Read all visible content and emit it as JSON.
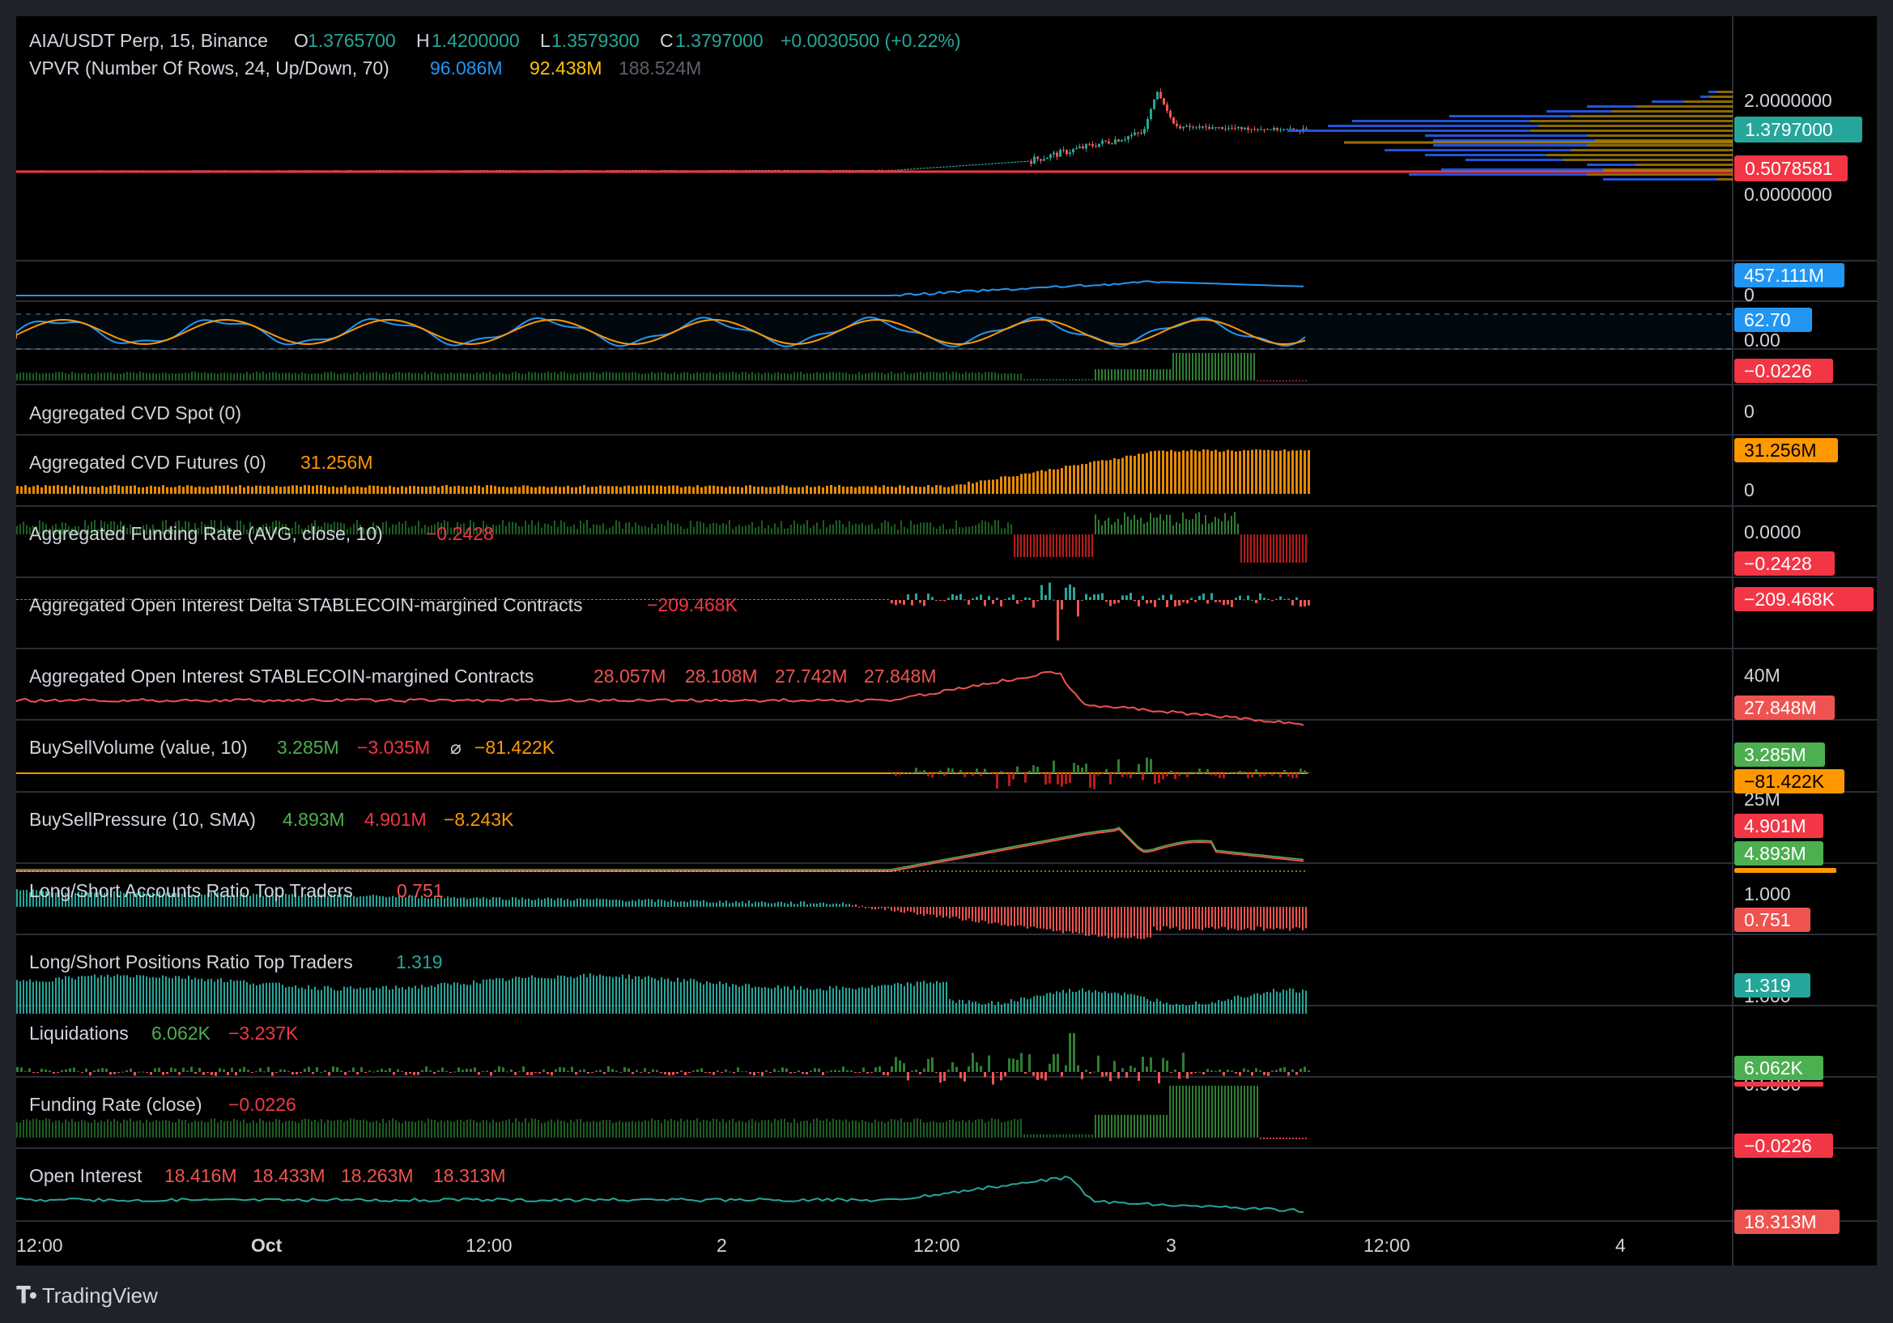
{
  "header": {
    "symbol": "AIA/USDT Perp, 15, Binance",
    "open_label": "O",
    "open": "1.3765700",
    "high_label": "H",
    "high": "1.4200000",
    "low_label": "L",
    "low": "1.3579300",
    "close_label": "C",
    "close": "1.3797000",
    "change": "+0.0030500 (+0.22%)"
  },
  "vpvr": {
    "title": "VPVR (Number Of Rows, 24, Up/Down, 70)",
    "up": "96.086M",
    "down": "92.438M",
    "total": "188.524M"
  },
  "colors": {
    "up": "#26a69a",
    "down": "#ef5350",
    "green": "#4caf50",
    "red": "#f23645",
    "orange": "#ff9800",
    "blue": "#2196f3",
    "text": "#d1d4dc",
    "grid": "#2a2e39",
    "frame": "#000000",
    "outer": "#1f2229"
  },
  "price_axis": {
    "ticks": [
      "2.0000000",
      "0.0000000"
    ],
    "last_price_tag": "1.3797000",
    "line_tag": "0.5078581"
  },
  "panes": {
    "p1": {
      "tags": [
        "457.111M"
      ],
      "ticks": [
        "0"
      ]
    },
    "p2": {
      "tags": [
        "62.70"
      ],
      "ticks": [
        "0.00"
      ]
    },
    "p3": {
      "tags": [
        "−0.0226"
      ]
    },
    "cvd_spot": {
      "title": "Aggregated CVD Spot (0)",
      "ticks": [
        "0"
      ]
    },
    "cvd_fut": {
      "title": "Aggregated CVD Futures (0)",
      "v1": "31.256M",
      "tags": [
        "31.256M"
      ],
      "ticks": [
        "0"
      ]
    },
    "agg_funding": {
      "title": "Aggregated Funding Rate (AVG, close, 10)",
      "v1": "−0.2428",
      "tags": [
        "−0.2428"
      ],
      "ticks": [
        "0.0000"
      ]
    },
    "oi_delta": {
      "title": "Aggregated Open Interest Delta STABLECOIN-margined Contracts",
      "v1": "−209.468K",
      "tags": [
        "−209.468K"
      ]
    },
    "agg_oi": {
      "title": "Aggregated Open Interest STABLECOIN-margined Contracts",
      "v1": "28.057M",
      "v2": "28.108M",
      "v3": "27.742M",
      "v4": "27.848M",
      "tags": [
        "27.848M"
      ],
      "ticks": [
        "40M"
      ]
    },
    "bsv": {
      "title": "BuySellVolume (value, 10)",
      "v1": "3.285M",
      "v2": "−3.035M",
      "sym": "⌀",
      "v3": "−81.422K",
      "tags": [
        "3.285M",
        "−81.422K"
      ]
    },
    "bsp": {
      "title": "BuySellPressure (10, SMA)",
      "v1": "4.893M",
      "v2": "4.901M",
      "v3": "−8.243K",
      "tags": [
        "4.901M",
        "4.893M"
      ],
      "ticks": [
        "25M"
      ]
    },
    "ls_acc": {
      "title": "Long/Short Accounts Ratio Top Traders",
      "v1": "0.751",
      "tags": [
        "0.751"
      ],
      "ticks": [
        "1.000"
      ]
    },
    "ls_pos": {
      "title": "Long/Short Positions Ratio Top Traders",
      "v1": "1.319",
      "tags": [
        "1.319"
      ],
      "ticks": [
        "1.000"
      ]
    },
    "liq": {
      "title": "Liquidations",
      "v1": "6.062K",
      "v2": "−3.237K",
      "tags": [
        "6.062K"
      ]
    },
    "funding": {
      "title": "Funding Rate (close)",
      "v1": "−0.0226",
      "tags": [
        "−0.0226"
      ],
      "ticks": [
        "0.5000"
      ]
    },
    "oi": {
      "title": "Open Interest",
      "v1": "18.416M",
      "v2": "18.433M",
      "v3": "18.263M",
      "v4": "18.313M",
      "tags": [
        "18.313M"
      ]
    }
  },
  "time_axis": [
    "12:00",
    "Oct",
    "12:00",
    "2",
    "12:00",
    "3",
    "12:00",
    "4"
  ],
  "brand": "TradingView",
  "chart_data": {
    "type": "line",
    "title": "AIA/USDT Perp, 15, Binance",
    "x": [
      "Sep 30 12:00",
      "Oct 1 00:00",
      "Oct 1 12:00",
      "Oct 2 00:00",
      "Oct 2 12:00",
      "Oct 3 00:00",
      "Oct 3 12:00",
      "Oct 4 00:00"
    ],
    "series": [
      {
        "name": "AIA/USDT Perp",
        "points": [
          [
            "Sep 30 12:00",
            0.51
          ],
          [
            "Oct 1 00:00",
            0.51
          ],
          [
            "Oct 1 12:00",
            0.51
          ],
          [
            "Oct 2 00:00",
            0.52
          ],
          [
            "Oct 2 12:00",
            0.62
          ],
          [
            "Oct 2 18:00",
            1.0
          ],
          [
            "Oct 3 00:00",
            2.25
          ],
          [
            "Oct 3 03:00",
            1.5
          ],
          [
            "Oct 3 08:00",
            1.38
          ]
        ]
      }
    ],
    "ylim": [
      0,
      2.0
    ],
    "horizontal_line": 0.5078581,
    "grid": false
  }
}
